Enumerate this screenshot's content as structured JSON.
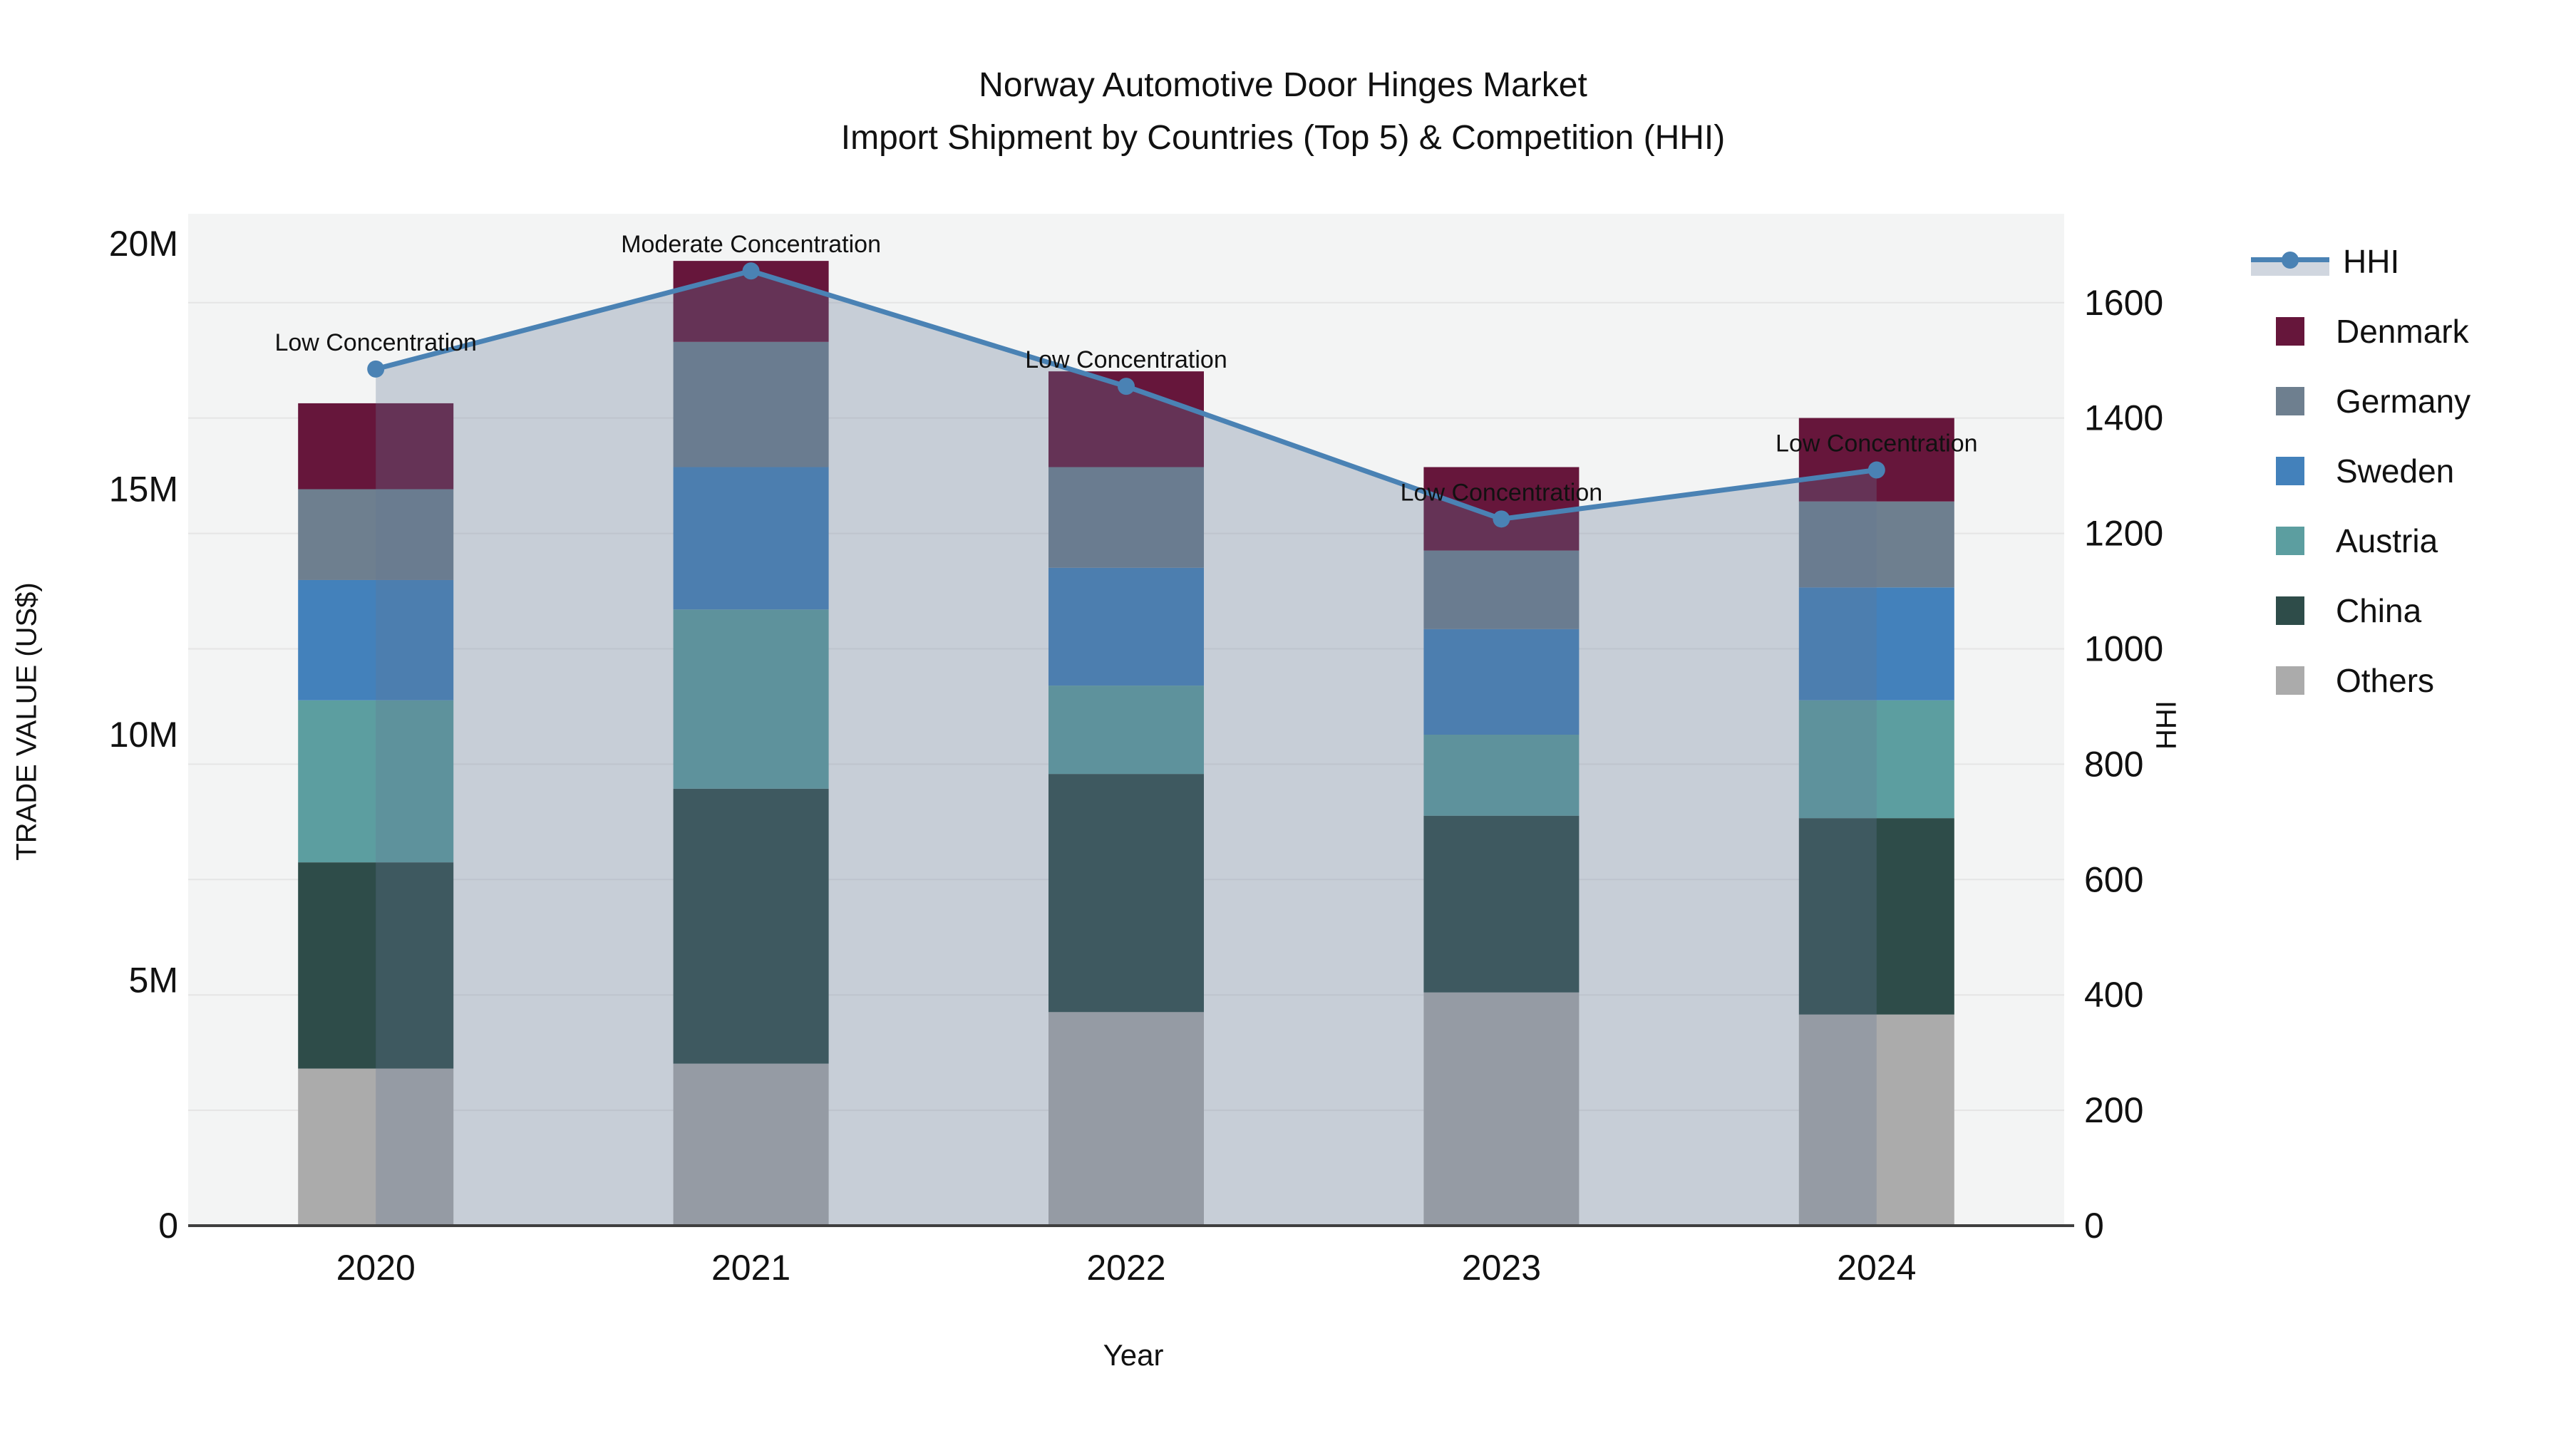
{
  "title": {
    "line1": "Norway Automotive Door Hinges Market",
    "line2": "Import Shipment by Countries (Top 5) & Competition (HHI)"
  },
  "axes": {
    "y_left": {
      "title": "TRADE VALUE (US$)",
      "tick_labels": [
        "0",
        "5M",
        "10M",
        "15M",
        "20M"
      ],
      "tick_values_millions": [
        0,
        5,
        10,
        15,
        20
      ]
    },
    "y_right": {
      "title": "HHI",
      "tick_labels": [
        "0",
        "200",
        "400",
        "600",
        "800",
        "1000",
        "1200",
        "1400",
        "1600"
      ],
      "tick_values": [
        0,
        200,
        400,
        600,
        800,
        1000,
        1200,
        1400,
        1600
      ]
    },
    "x": {
      "title": "Year",
      "tick_labels": [
        "2020",
        "2021",
        "2022",
        "2023",
        "2024"
      ]
    }
  },
  "colors": {
    "denmark": "#66163B",
    "germany": "#6E7F8F",
    "sweden": "#4381BB",
    "austria": "#5C9EA0",
    "china": "#2E4C49",
    "others": "#ABABAB",
    "hhi_line": "#4A82B4",
    "hhi_area": "rgba(98,118,148,0.30)",
    "plot_bg": "#F3F4F4",
    "grid": "#E5E5E5",
    "axis_line": "#3F3F3F",
    "text": "#111111"
  },
  "legend": {
    "items": [
      {
        "label": "HHI",
        "type": "line",
        "color": "#4A82B4"
      },
      {
        "label": "Denmark",
        "type": "square",
        "color": "#66163B"
      },
      {
        "label": "Germany",
        "type": "square",
        "color": "#6E7F8F"
      },
      {
        "label": "Sweden",
        "type": "square",
        "color": "#4381BB"
      },
      {
        "label": "Austria",
        "type": "square",
        "color": "#5C9EA0"
      },
      {
        "label": "China",
        "type": "square",
        "color": "#2E4C49"
      },
      {
        "label": "Others",
        "type": "square",
        "color": "#ABABAB"
      }
    ]
  },
  "chart_data": {
    "type": "bar+line",
    "title": "Norway Automotive Door Hinges Market — Import Shipment by Countries (Top 5) & Competition (HHI)",
    "xlabel": "Year",
    "ylabel_left": "TRADE VALUE (US$)",
    "ylabel_right": "HHI",
    "categories": [
      "2020",
      "2021",
      "2022",
      "2023",
      "2024"
    ],
    "bar_unit": "millions USD",
    "stack_order_bottom_to_top": [
      "Others",
      "China",
      "Austria",
      "Sweden",
      "Germany",
      "Denmark"
    ],
    "series": [
      {
        "name": "Others",
        "color": "#ABABAB",
        "values": [
          3.2,
          3.3,
          4.35,
          4.75,
          4.3
        ]
      },
      {
        "name": "China",
        "color": "#2E4C49",
        "values": [
          4.2,
          5.6,
          4.85,
          3.6,
          4.0
        ]
      },
      {
        "name": "Austria",
        "color": "#5C9EA0",
        "values": [
          3.3,
          3.65,
          1.8,
          1.65,
          2.4
        ]
      },
      {
        "name": "Sweden",
        "color": "#4381BB",
        "values": [
          2.45,
          2.9,
          2.4,
          2.15,
          2.3
        ]
      },
      {
        "name": "Germany",
        "color": "#6E7F8F",
        "values": [
          1.85,
          2.55,
          2.05,
          1.6,
          1.75
        ]
      },
      {
        "name": "Denmark",
        "color": "#66163B",
        "values": [
          1.75,
          1.65,
          1.95,
          1.7,
          1.7
        ]
      }
    ],
    "bar_totals": [
      16.75,
      19.65,
      17.4,
      15.45,
      16.45
    ],
    "line_series": {
      "name": "HHI",
      "color": "#4A82B4",
      "values": [
        1485,
        1655,
        1455,
        1225,
        1310
      ],
      "area_fill": true
    },
    "annotations": [
      {
        "x": "2020",
        "text": "Low Concentration"
      },
      {
        "x": "2021",
        "text": "Moderate Concentration"
      },
      {
        "x": "2022",
        "text": "Low Concentration"
      },
      {
        "x": "2023",
        "text": "Low Concentration"
      },
      {
        "x": "2024",
        "text": "Low Concentration"
      }
    ],
    "ylim_left_millions": [
      0,
      20.6
    ],
    "ylim_right": [
      0,
      1754
    ],
    "grid": "horizontal, every 200 HHI",
    "legend_position": "right"
  }
}
